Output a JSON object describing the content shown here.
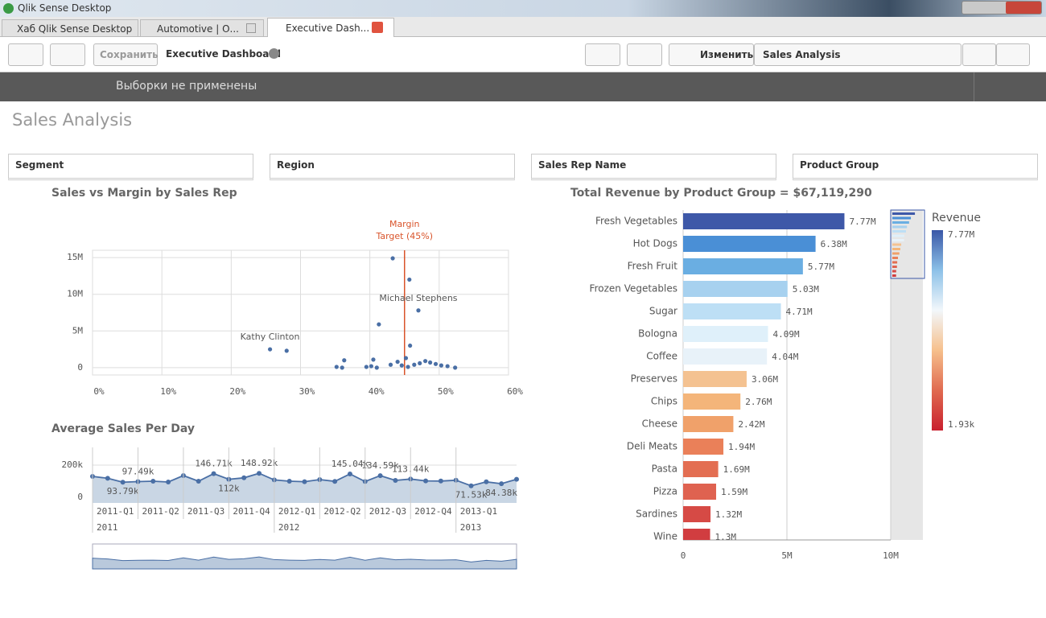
{
  "window": {
    "title": "Qlik Sense Desktop"
  },
  "tabs": [
    "Хаб Qlik Sense Desktop",
    "Automotive | О...",
    "Executive Dash..."
  ],
  "toolbar": {
    "save": "Сохранить",
    "app": "Executive Dashboard",
    "edit": "Изменить",
    "sheet": "Sales Analysis"
  },
  "selections": "Выборки не применены",
  "sheet_title": "Sales Analysis",
  "filters": [
    "Segment",
    "Region",
    "Sales Rep Name",
    "Product Group"
  ],
  "chart_data": [
    {
      "type": "scatter",
      "title": "Sales vs Margin by Sales Rep",
      "color": "#4a6fa5",
      "xlim": [
        0,
        60
      ],
      "xticks": [
        {
          "value": 0,
          "label": "0%"
        },
        {
          "value": 10,
          "label": "10%"
        },
        {
          "value": 20,
          "label": "20%"
        },
        {
          "value": 30,
          "label": "30%"
        },
        {
          "value": 40,
          "label": "40%"
        },
        {
          "value": 50,
          "label": "50%"
        },
        {
          "value": 60,
          "label": "60%"
        }
      ],
      "ylim": [
        -1000000,
        16000000
      ],
      "yticks": [
        0,
        {
          "value": 5000000,
          "label": "5M"
        },
        {
          "value": 10000000,
          "label": "10M"
        },
        {
          "value": 15000000,
          "label": "15M"
        }
      ],
      "x": [
        43.3,
        45.7,
        47.0,
        41.3,
        25.6,
        28.0,
        45.8,
        36.3,
        40.5,
        45.2,
        35.2,
        36.0,
        39.5,
        40.2,
        41.0,
        43.0,
        44.0,
        44.6,
        45.5,
        46.4,
        47.2,
        48.0,
        48.7,
        49.5,
        50.3,
        51.2,
        52.3
      ],
      "values": [
        14900000,
        12000000,
        7800000,
        5900000,
        2500000,
        2300000,
        3000000,
        1000000,
        1100000,
        1300000,
        100000,
        0,
        100000,
        200000,
        0,
        400000,
        800000,
        300000,
        100000,
        400000,
        600000,
        900000,
        700000,
        500000,
        300000,
        200000,
        0
      ],
      "point_labels": [
        null,
        null,
        "Michael Stephens",
        null,
        "Kathy Clinton",
        null,
        null,
        null,
        null,
        null,
        null,
        null,
        null,
        null,
        null,
        null,
        null,
        null,
        null,
        null,
        null,
        null,
        null,
        null,
        null,
        null,
        null
      ],
      "reference_line": {
        "value": 45,
        "label_lines": [
          "Margin",
          "Target (45%)"
        ],
        "color": "#d9542b"
      }
    },
    {
      "type": "line",
      "title": "Average Sales Per Day",
      "color": "#4a6fa5",
      "area_color": "#c9d6e4",
      "categories": [
        null,
        null,
        null,
        null,
        null,
        null,
        null,
        null,
        null,
        null,
        null,
        null,
        null,
        null,
        null,
        null,
        null,
        null,
        null,
        null,
        null,
        null,
        null,
        null,
        null,
        null,
        null,
        null,
        null
      ],
      "quarters": [
        "2011-Q1",
        "2011-Q2",
        "2011-Q3",
        "2011-Q4",
        "2012-Q1",
        "2012-Q2",
        "2012-Q3",
        "2012-Q4",
        "2013-Q1"
      ],
      "years": [
        "2011",
        "2012",
        "2013"
      ],
      "values": [
        130000,
        118000,
        93790,
        97490,
        100000,
        95000,
        135000,
        100000,
        146710,
        112000,
        121000,
        148920,
        108000,
        100000,
        97000,
        110000,
        99000,
        145040,
        98000,
        134590,
        105000,
        113440,
        102000,
        101000,
        106000,
        71530,
        96000,
        84380,
        112000
      ],
      "value_labels": [
        null,
        null,
        "93.79k",
        "97.49k",
        null,
        null,
        null,
        null,
        "146.71k",
        "112k",
        null,
        "148.92k",
        null,
        null,
        null,
        null,
        null,
        "145.04k",
        null,
        "134.59k",
        null,
        "113.44k",
        null,
        null,
        null,
        "71.53k",
        null,
        "84.38k",
        null
      ],
      "ylim": [
        -35000,
        310000
      ],
      "yticks": [
        0,
        {
          "value": 200000,
          "label": "200k"
        }
      ]
    },
    {
      "type": "bar",
      "orientation": "horizontal",
      "title": "Total Revenue by Product Group = $67,119,290",
      "categories": [
        "Fresh Vegetables",
        "Hot Dogs",
        "Fresh Fruit",
        "Frozen Vegetables",
        "Sugar",
        "Bologna",
        "Coffee",
        "Preserves",
        "Chips",
        "Cheese",
        "Deli Meats",
        "Pasta",
        "Pizza",
        "Sardines",
        "Wine"
      ],
      "values": [
        7770000,
        6380000,
        5770000,
        5030000,
        4710000,
        4090000,
        4040000,
        3060000,
        2760000,
        2420000,
        1940000,
        1690000,
        1590000,
        1320000,
        1300000
      ],
      "value_labels": [
        "7.77M",
        "6.38M",
        "5.77M",
        "5.03M",
        "4.71M",
        "4.09M",
        "4.04M",
        "3.06M",
        "2.76M",
        "2.42M",
        "1.94M",
        "1.69M",
        "1.59M",
        "1.32M",
        "1.3M"
      ],
      "colors": [
        "#3e58a8",
        "#4a8fd6",
        "#6aaee2",
        "#a7d1ef",
        "#bddff5",
        "#dff0fa",
        "#e8f2f9",
        "#f4c291",
        "#f4b57a",
        "#f0a16a",
        "#ea8059",
        "#e36e52",
        "#df6250",
        "#d64a45",
        "#d13d40"
      ],
      "xlim": [
        0,
        10000000
      ],
      "xticks": [
        0,
        {
          "value": 5000000,
          "label": "5M"
        },
        {
          "value": 10000000,
          "label": "10M"
        }
      ],
      "legend": {
        "title": "Revenue",
        "max": 7770000,
        "max_label": "7.77M",
        "min": 1930,
        "min_label": "1.93k",
        "colors": [
          "#3a57a7",
          "#8cc1e8",
          "#f2f7fb",
          "#f6c08c",
          "#e06a50",
          "#c9202e"
        ]
      }
    }
  ]
}
